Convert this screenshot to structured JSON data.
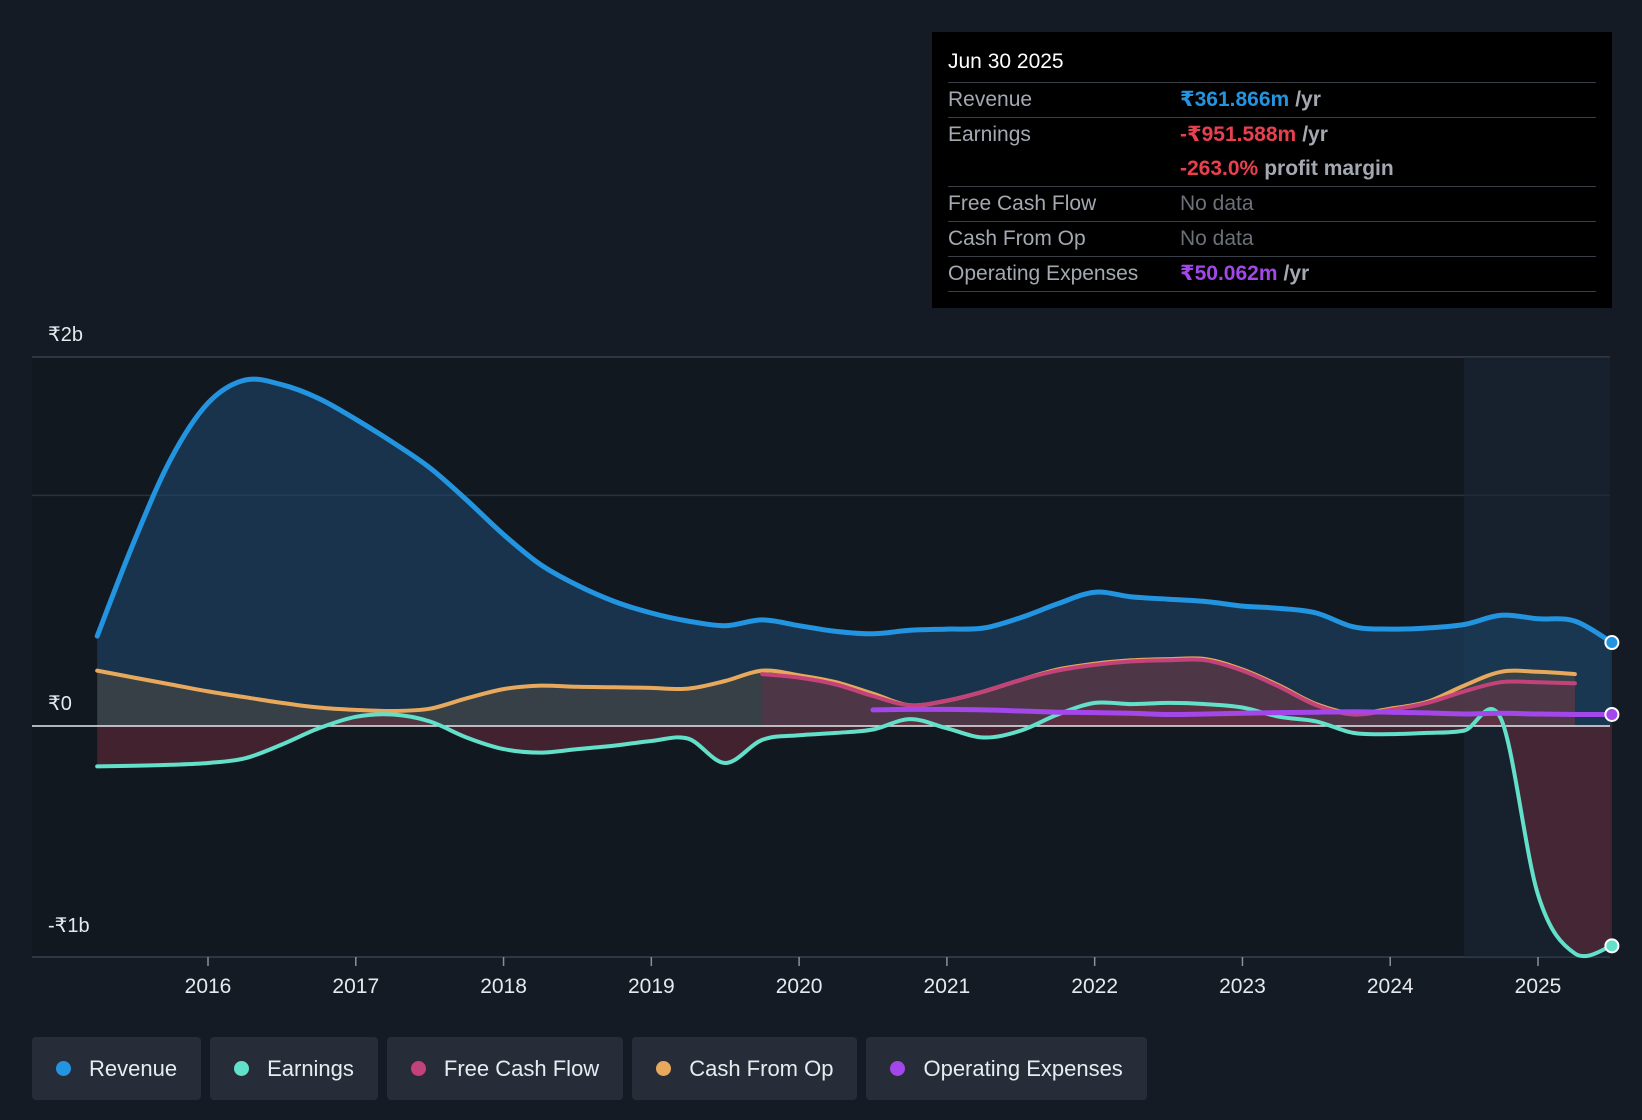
{
  "tooltip": {
    "date": "Jun 30 2025",
    "revenue_label": "Revenue",
    "revenue_value": "₹361.866m",
    "revenue_unit": "/yr",
    "earnings_label": "Earnings",
    "earnings_value": "-₹951.588m",
    "earnings_unit": "/yr",
    "margin_value": "-263.0%",
    "margin_unit": "profit margin",
    "fcf_label": "Free Cash Flow",
    "fcf_value": "No data",
    "cfo_label": "Cash From Op",
    "cfo_value": "No data",
    "opex_label": "Operating Expenses",
    "opex_value": "₹50.062m",
    "opex_unit": "/yr"
  },
  "legend": {
    "revenue": "Revenue",
    "earnings": "Earnings",
    "fcf": "Free Cash Flow",
    "cfo": "Cash From Op",
    "opex": "Operating Expenses"
  },
  "colors": {
    "revenue": "#2394e0",
    "earnings": "#62e0c9",
    "fcf": "#c4427a",
    "cfo": "#e8a95c",
    "opex": "#a347ea",
    "earnings_negative": "#e8404f",
    "background": "#151b24"
  },
  "chart_data": {
    "type": "area",
    "title": "",
    "xlabel": "",
    "ylabel": "",
    "ylim": [
      -1000,
      1600
    ],
    "y_tick_labels": [
      {
        "value": 1600,
        "label": "₹2b"
      },
      {
        "value": 0,
        "label": "₹0"
      },
      {
        "value": -1000,
        "label": "-₹1b"
      }
    ],
    "x_ticks": [
      2016,
      2017,
      2018,
      2019,
      2020,
      2021,
      2022,
      2023,
      2024,
      2025
    ],
    "x_range": [
      2015.0,
      2025.5
    ],
    "forecast_start": 2024.5,
    "series": [
      {
        "name": "Revenue",
        "key": "revenue",
        "points": [
          [
            2015.25,
            390
          ],
          [
            2015.5,
            800
          ],
          [
            2015.75,
            1160
          ],
          [
            2016.0,
            1400
          ],
          [
            2016.25,
            1500
          ],
          [
            2016.5,
            1480
          ],
          [
            2016.75,
            1420
          ],
          [
            2017.0,
            1330
          ],
          [
            2017.25,
            1230
          ],
          [
            2017.5,
            1120
          ],
          [
            2017.75,
            980
          ],
          [
            2018.0,
            830
          ],
          [
            2018.25,
            700
          ],
          [
            2018.5,
            610
          ],
          [
            2018.75,
            540
          ],
          [
            2019.0,
            490
          ],
          [
            2019.25,
            455
          ],
          [
            2019.5,
            435
          ],
          [
            2019.75,
            460
          ],
          [
            2020.0,
            435
          ],
          [
            2020.25,
            410
          ],
          [
            2020.5,
            400
          ],
          [
            2020.75,
            415
          ],
          [
            2021.0,
            420
          ],
          [
            2021.25,
            425
          ],
          [
            2021.5,
            470
          ],
          [
            2021.75,
            530
          ],
          [
            2022.0,
            580
          ],
          [
            2022.25,
            560
          ],
          [
            2022.5,
            550
          ],
          [
            2022.75,
            540
          ],
          [
            2023.0,
            520
          ],
          [
            2023.25,
            510
          ],
          [
            2023.5,
            490
          ],
          [
            2023.75,
            430
          ],
          [
            2024.0,
            420
          ],
          [
            2024.25,
            425
          ],
          [
            2024.5,
            440
          ],
          [
            2024.75,
            480
          ],
          [
            2025.0,
            465
          ],
          [
            2025.25,
            455
          ],
          [
            2025.5,
            361.866
          ]
        ]
      },
      {
        "name": "Earnings",
        "key": "earnings",
        "points": [
          [
            2015.25,
            -175
          ],
          [
            2015.5,
            -172
          ],
          [
            2015.75,
            -168
          ],
          [
            2016.0,
            -160
          ],
          [
            2016.25,
            -140
          ],
          [
            2016.5,
            -80
          ],
          [
            2016.75,
            -10
          ],
          [
            2017.0,
            40
          ],
          [
            2017.25,
            50
          ],
          [
            2017.5,
            20
          ],
          [
            2017.75,
            -50
          ],
          [
            2018.0,
            -100
          ],
          [
            2018.25,
            -115
          ],
          [
            2018.5,
            -100
          ],
          [
            2018.75,
            -85
          ],
          [
            2019.0,
            -65
          ],
          [
            2019.25,
            -55
          ],
          [
            2019.5,
            -160
          ],
          [
            2019.75,
            -60
          ],
          [
            2020.0,
            -40
          ],
          [
            2020.25,
            -30
          ],
          [
            2020.5,
            -15
          ],
          [
            2020.75,
            30
          ],
          [
            2021.0,
            -10
          ],
          [
            2021.25,
            -50
          ],
          [
            2021.5,
            -20
          ],
          [
            2021.75,
            50
          ],
          [
            2022.0,
            100
          ],
          [
            2022.25,
            95
          ],
          [
            2022.5,
            100
          ],
          [
            2022.75,
            95
          ],
          [
            2023.0,
            80
          ],
          [
            2023.25,
            40
          ],
          [
            2023.5,
            20
          ],
          [
            2023.75,
            -30
          ],
          [
            2024.0,
            -35
          ],
          [
            2024.25,
            -30
          ],
          [
            2024.5,
            -20
          ],
          [
            2024.75,
            30
          ],
          [
            2025.0,
            -730
          ],
          [
            2025.25,
            -985
          ],
          [
            2025.5,
            -951.588
          ]
        ]
      },
      {
        "name": "Free Cash Flow",
        "key": "fcf",
        "points": [
          [
            2019.75,
            225
          ],
          [
            2020.0,
            210
          ],
          [
            2020.25,
            180
          ],
          [
            2020.5,
            130
          ],
          [
            2020.75,
            90
          ],
          [
            2021.0,
            110
          ],
          [
            2021.25,
            150
          ],
          [
            2021.5,
            200
          ],
          [
            2021.75,
            240
          ],
          [
            2022.0,
            265
          ],
          [
            2022.25,
            280
          ],
          [
            2022.5,
            285
          ],
          [
            2022.75,
            285
          ],
          [
            2023.0,
            240
          ],
          [
            2023.25,
            170
          ],
          [
            2023.5,
            90
          ],
          [
            2023.75,
            50
          ],
          [
            2024.0,
            70
          ],
          [
            2024.25,
            100
          ],
          [
            2024.5,
            150
          ],
          [
            2024.75,
            190
          ],
          [
            2025.0,
            190
          ],
          [
            2025.25,
            185
          ]
        ]
      },
      {
        "name": "Cash From Op",
        "key": "cfo",
        "points": [
          [
            2015.25,
            240
          ],
          [
            2015.5,
            210
          ],
          [
            2015.75,
            180
          ],
          [
            2016.0,
            150
          ],
          [
            2016.25,
            125
          ],
          [
            2016.5,
            100
          ],
          [
            2016.75,
            80
          ],
          [
            2017.0,
            70
          ],
          [
            2017.25,
            65
          ],
          [
            2017.5,
            75
          ],
          [
            2017.75,
            120
          ],
          [
            2018.0,
            160
          ],
          [
            2018.25,
            175
          ],
          [
            2018.5,
            170
          ],
          [
            2018.75,
            168
          ],
          [
            2019.0,
            165
          ],
          [
            2019.25,
            162
          ],
          [
            2019.5,
            195
          ],
          [
            2019.75,
            240
          ],
          [
            2020.0,
            220
          ],
          [
            2020.25,
            190
          ],
          [
            2020.5,
            140
          ],
          [
            2020.75,
            90
          ],
          [
            2021.0,
            110
          ],
          [
            2021.25,
            150
          ],
          [
            2021.5,
            200
          ],
          [
            2021.75,
            245
          ],
          [
            2022.0,
            270
          ],
          [
            2022.25,
            285
          ],
          [
            2022.5,
            290
          ],
          [
            2022.75,
            290
          ],
          [
            2023.0,
            245
          ],
          [
            2023.25,
            175
          ],
          [
            2023.5,
            95
          ],
          [
            2023.75,
            55
          ],
          [
            2024.0,
            75
          ],
          [
            2024.25,
            105
          ],
          [
            2024.5,
            175
          ],
          [
            2024.75,
            235
          ],
          [
            2025.0,
            235
          ],
          [
            2025.25,
            225
          ]
        ]
      },
      {
        "name": "Operating Expenses",
        "key": "opex",
        "points": [
          [
            2020.5,
            70
          ],
          [
            2020.75,
            72
          ],
          [
            2021.0,
            72
          ],
          [
            2021.25,
            70
          ],
          [
            2021.5,
            65
          ],
          [
            2021.75,
            60
          ],
          [
            2022.0,
            58
          ],
          [
            2022.25,
            55
          ],
          [
            2022.5,
            50
          ],
          [
            2022.75,
            52
          ],
          [
            2023.0,
            55
          ],
          [
            2023.25,
            58
          ],
          [
            2023.5,
            60
          ],
          [
            2023.75,
            62
          ],
          [
            2024.0,
            60
          ],
          [
            2024.25,
            57
          ],
          [
            2024.5,
            52
          ],
          [
            2024.75,
            55
          ],
          [
            2025.0,
            52
          ],
          [
            2025.25,
            50
          ],
          [
            2025.5,
            50.062
          ]
        ]
      }
    ]
  }
}
